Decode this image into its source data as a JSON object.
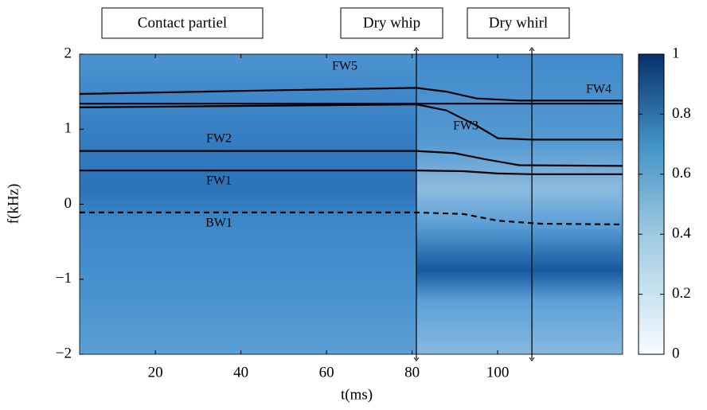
{
  "chart_data": {
    "type": "line",
    "x_label": "t(ms)",
    "y_label": "f(kHz)",
    "xlim": [
      2.3,
      129.2
    ],
    "ylim": [
      -2,
      2
    ],
    "xticks": [
      20,
      40,
      60,
      80,
      100
    ],
    "yticks": [
      {
        "value": -2,
        "label": "−2"
      },
      {
        "value": -1,
        "label": "−1"
      },
      0,
      1,
      2
    ],
    "colorbar": {
      "lim": [
        0,
        1
      ],
      "ticks": [
        0,
        0.2,
        0.4,
        0.6,
        0.8,
        1
      ]
    },
    "regions": [
      {
        "label": "Contact partiel"
      },
      {
        "label": "Dry whip",
        "x": 81
      },
      {
        "label": "Dry whirl",
        "x": 108
      }
    ],
    "series": [
      {
        "name": "FW5",
        "color": "#000000",
        "x": [
          2.3,
          40,
          81,
          88,
          95,
          105,
          129.2
        ],
        "values": [
          1.47,
          1.51,
          1.55,
          1.5,
          1.41,
          1.38,
          1.38
        ]
      },
      {
        "name": "FW4",
        "color": "#000000",
        "x": [
          2.3,
          81,
          129.2
        ],
        "values": [
          1.34,
          1.34,
          1.34
        ]
      },
      {
        "name": "FW3",
        "color": "#000000",
        "x": [
          2.3,
          81,
          88,
          95,
          100,
          108,
          129.2
        ],
        "values": [
          1.29,
          1.33,
          1.25,
          1.05,
          0.88,
          0.86,
          0.86
        ]
      },
      {
        "name": "FW2",
        "color": "#000000",
        "x": [
          2.3,
          81,
          90,
          97,
          105,
          129.2
        ],
        "values": [
          0.71,
          0.71,
          0.68,
          0.6,
          0.52,
          0.51
        ]
      },
      {
        "name": "FW1",
        "color": "#000000",
        "x": [
          2.3,
          81,
          92,
          100,
          108,
          129.2
        ],
        "values": [
          0.45,
          0.45,
          0.44,
          0.41,
          0.4,
          0.4
        ]
      },
      {
        "name": "BW1",
        "color": "#000000",
        "dashed": true,
        "x": [
          2.3,
          81,
          92,
          100,
          110,
          129.2
        ],
        "values": [
          -0.11,
          -0.11,
          -0.13,
          -0.22,
          -0.26,
          -0.27
        ]
      }
    ]
  }
}
